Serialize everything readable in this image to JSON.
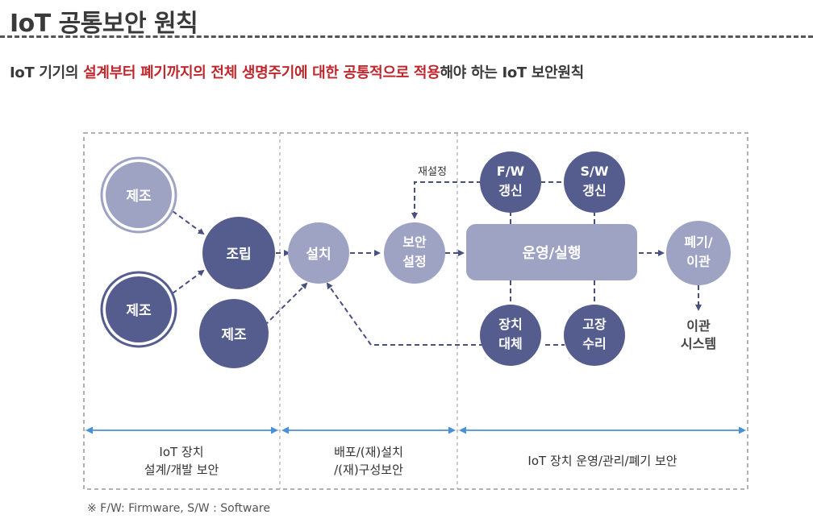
{
  "page": {
    "title": "IoT 공통보안 원칙",
    "subtitle": {
      "part1": "IoT 기기의 ",
      "highlight1": "설계부터 폐기까지의 전체 생명주기에 대한 공통적으로 적용",
      "part2": "해야 하는 IoT 보안원칙"
    },
    "footnote": "※ F/W: Firmware, S/W : Software"
  },
  "diagram": {
    "nodes": {
      "manufacture1": [
        "제조"
      ],
      "manufacture2": [
        "제조"
      ],
      "assembly": [
        "조립"
      ],
      "manufacture3": [
        "제조"
      ],
      "install": [
        "설치"
      ],
      "security_config": [
        "보안",
        "설정"
      ],
      "fw_update": [
        "F/W",
        "갱신"
      ],
      "sw_update": [
        "S/W",
        "갱신"
      ],
      "operation": [
        "운영/실행"
      ],
      "device_replace": [
        "장치",
        "대체"
      ],
      "repair": [
        "고장",
        "수리"
      ],
      "dispose": [
        "폐기/",
        "이관"
      ],
      "transfer_system": [
        "이관",
        "시스템"
      ]
    },
    "reconfig_label": "재설정",
    "phases": [
      [
        "IoT 장치",
        "설계/개발 보안"
      ],
      [
        "배포/(재)설치",
        "/(재)구성보안"
      ],
      [
        "IoT 장치 운영/관리/폐기 보안"
      ]
    ],
    "colors": {
      "dark_node": "#555d8f",
      "light_node": "#9ea3c4",
      "light_text": "#ffffff",
      "arrow": "#48507e",
      "phase_arrow": "#4a90d9",
      "frame": "#999999"
    }
  }
}
